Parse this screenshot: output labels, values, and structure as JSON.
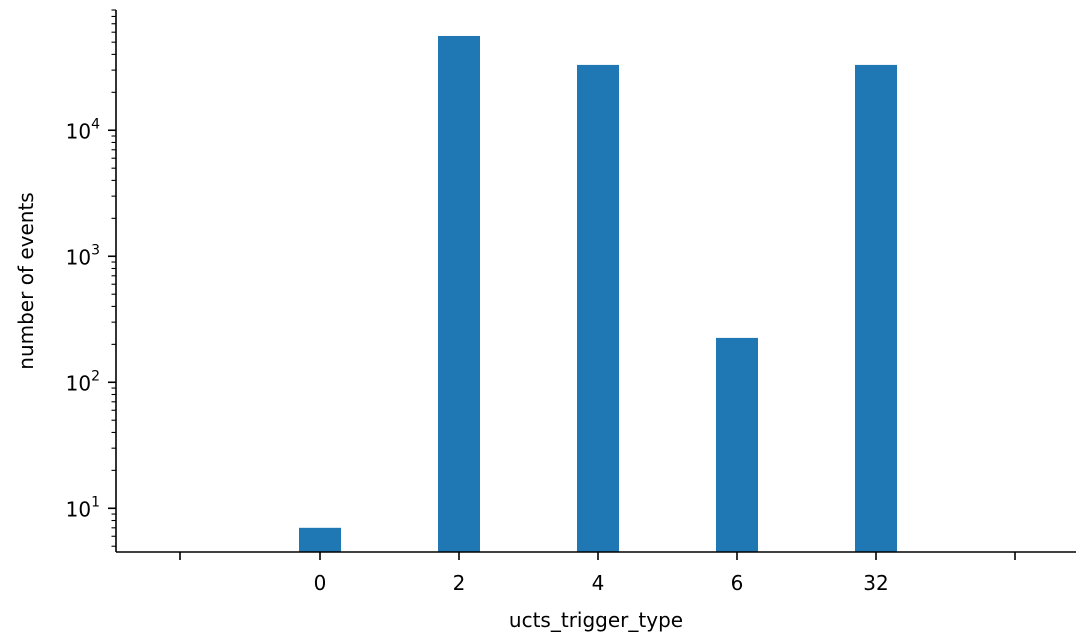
{
  "chart_data": {
    "type": "bar",
    "xlabel": "ucts_trigger_type",
    "ylabel": "number of events",
    "yscale": "log",
    "ylim": [
      4.5,
      90000
    ],
    "categories": [
      "0",
      "2",
      "4",
      "6",
      "32"
    ],
    "values": [
      7,
      56000,
      33000,
      225,
      33000
    ],
    "y_ticks": [
      {
        "base": "10",
        "exp": "1",
        "value": 10
      },
      {
        "base": "10",
        "exp": "2",
        "value": 100
      },
      {
        "base": "10",
        "exp": "3",
        "value": 1000
      },
      {
        "base": "10",
        "exp": "4",
        "value": 10000
      }
    ],
    "bar_color": "#1f77b4",
    "grid": false,
    "legend": "none"
  }
}
